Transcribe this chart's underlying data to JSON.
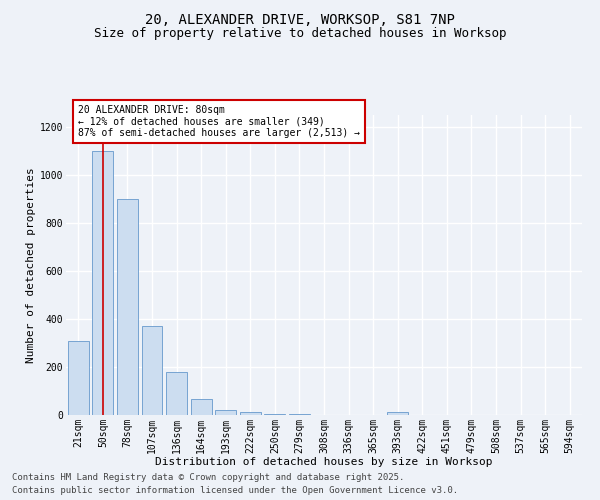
{
  "title_line1": "20, ALEXANDER DRIVE, WORKSOP, S81 7NP",
  "title_line2": "Size of property relative to detached houses in Worksop",
  "xlabel": "Distribution of detached houses by size in Worksop",
  "ylabel": "Number of detached properties",
  "categories": [
    "21sqm",
    "50sqm",
    "78sqm",
    "107sqm",
    "136sqm",
    "164sqm",
    "193sqm",
    "222sqm",
    "250sqm",
    "279sqm",
    "308sqm",
    "336sqm",
    "365sqm",
    "393sqm",
    "422sqm",
    "451sqm",
    "479sqm",
    "508sqm",
    "537sqm",
    "565sqm",
    "594sqm"
  ],
  "values": [
    310,
    1100,
    900,
    370,
    180,
    65,
    20,
    12,
    5,
    4,
    2,
    0,
    0,
    12,
    0,
    0,
    0,
    0,
    0,
    0,
    0
  ],
  "bar_color": "#ccddf0",
  "bar_edge_color": "#6699cc",
  "vline_x_index": 1,
  "vline_color": "#cc0000",
  "annotation_text": "20 ALEXANDER DRIVE: 80sqm\n← 12% of detached houses are smaller (349)\n87% of semi-detached houses are larger (2,513) →",
  "annotation_box_color": "#cc0000",
  "annotation_bg": "#ffffff",
  "ylim": [
    0,
    1250
  ],
  "yticks": [
    0,
    200,
    400,
    600,
    800,
    1000,
    1200
  ],
  "footnote_line1": "Contains HM Land Registry data © Crown copyright and database right 2025.",
  "footnote_line2": "Contains public sector information licensed under the Open Government Licence v3.0.",
  "background_color": "#eef2f8",
  "plot_bg_color": "#eef2f8",
  "grid_color": "#ffffff",
  "title_fontsize": 10,
  "subtitle_fontsize": 9,
  "axis_label_fontsize": 8,
  "tick_fontsize": 7,
  "footnote_fontsize": 6.5
}
